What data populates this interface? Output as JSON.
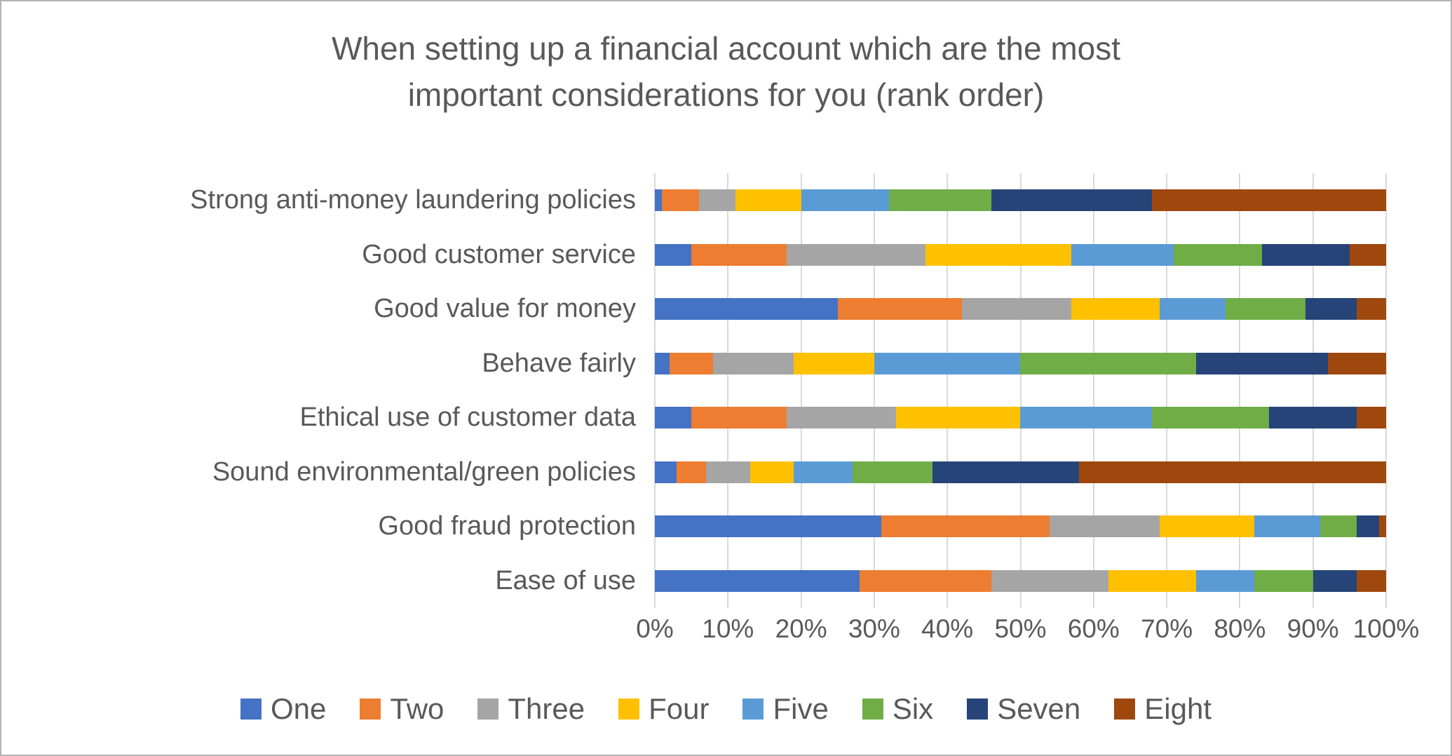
{
  "chart_data": {
    "type": "bar",
    "stacked": true,
    "orientation": "horizontal",
    "title": "When setting up a financial account which are the most important considerations for you (rank order)",
    "categories": [
      "Strong anti-money laundering policies",
      "Good customer service",
      "Good value for money",
      "Behave fairly",
      "Ethical use of customer data",
      "Sound environmental/green policies",
      "Good fraud protection",
      "Ease of use"
    ],
    "series": [
      {
        "name": "One",
        "color": "#4472C4",
        "values": [
          1,
          5,
          25,
          2,
          5,
          3,
          31,
          28
        ]
      },
      {
        "name": "Two",
        "color": "#ED7D31",
        "values": [
          5,
          13,
          17,
          6,
          13,
          4,
          23,
          18
        ]
      },
      {
        "name": "Three",
        "color": "#A5A5A5",
        "values": [
          5,
          19,
          15,
          11,
          15,
          6,
          15,
          16
        ]
      },
      {
        "name": "Four",
        "color": "#FFC000",
        "values": [
          9,
          20,
          12,
          11,
          17,
          6,
          13,
          12
        ]
      },
      {
        "name": "Five",
        "color": "#5B9BD5",
        "values": [
          12,
          14,
          9,
          20,
          18,
          8,
          9,
          8
        ]
      },
      {
        "name": "Six",
        "color": "#70AD47",
        "values": [
          14,
          12,
          11,
          24,
          16,
          11,
          5,
          8
        ]
      },
      {
        "name": "Seven",
        "color": "#264478",
        "values": [
          22,
          12,
          7,
          18,
          12,
          20,
          3,
          6
        ]
      },
      {
        "name": "Eight",
        "color": "#9E480E",
        "values": [
          32,
          5,
          4,
          8,
          4,
          42,
          1,
          4
        ]
      }
    ],
    "xlim": [
      0,
      100
    ],
    "x_ticks": [
      "0%",
      "10%",
      "20%",
      "30%",
      "40%",
      "50%",
      "60%",
      "70%",
      "80%",
      "90%",
      "100%"
    ],
    "grid": true,
    "legend_position": "bottom",
    "text_color": "#595959",
    "gridline_color": "#D9D9D9",
    "background_color": "#FFFFFF"
  }
}
